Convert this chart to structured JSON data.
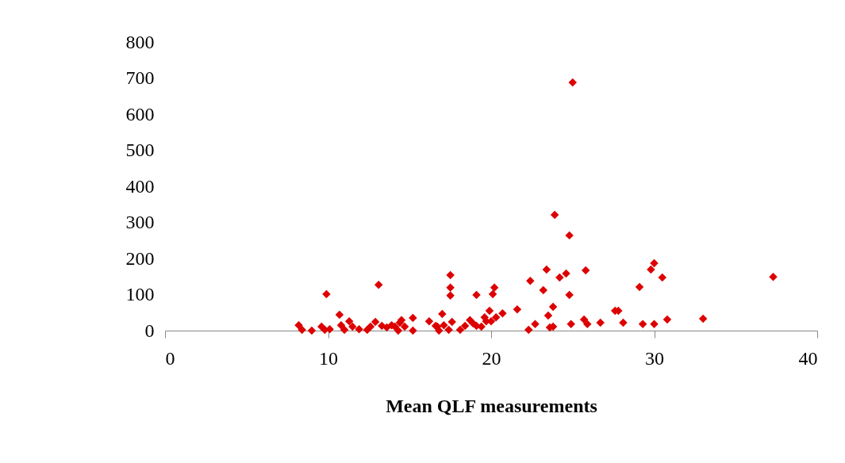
{
  "chart_data": {
    "type": "scatter",
    "xlabel": "Mean QLF measurements",
    "marker": "diamond",
    "grid": false,
    "legend": false,
    "xlim": [
      0,
      40
    ],
    "xticks": [
      0,
      10,
      20,
      30,
      40
    ],
    "ylim": [
      0,
      800
    ],
    "yticks": [
      0,
      100,
      200,
      300,
      400,
      500,
      600,
      700,
      800
    ],
    "series": [
      {
        "color": "#dd0000",
        "x": [
          8.2,
          8.4,
          9.0,
          9.6,
          9.9,
          9.8,
          10.1,
          10.7,
          10.8,
          11.0,
          11.3,
          11.5,
          11.9,
          12.4,
          12.6,
          12.9,
          13.1,
          13.3,
          13.6,
          13.9,
          14.1,
          14.3,
          14.4,
          14.5,
          14.7,
          15.2,
          15.2,
          16.2,
          16.6,
          16.7,
          16.8,
          17.0,
          17.1,
          17.4,
          17.5,
          17.5,
          17.5,
          17.6,
          18.1,
          18.4,
          18.7,
          18.9,
          19.1,
          19.1,
          19.4,
          19.6,
          19.9,
          20.1,
          20.2,
          20.3,
          20.7,
          19.7,
          20.0,
          21.6,
          22.3,
          22.7,
          22.4,
          23.4,
          23.2,
          23.9,
          23.5,
          23.8,
          23.6,
          23.8,
          24.2,
          24.6,
          24.8,
          24.8,
          24.9,
          25.0,
          25.8,
          25.7,
          25.9,
          26.7,
          27.6,
          27.8,
          28.1,
          29.1,
          29.3,
          29.8,
          30.0,
          30.0,
          30.5,
          30.8,
          33.0,
          37.3
        ],
        "values": [
          15,
          2,
          0,
          11,
          101,
          2,
          4,
          44,
          15,
          2,
          26,
          11,
          4,
          2,
          11,
          24,
          127,
          13,
          9,
          15,
          11,
          0,
          22,
          29,
          11,
          35,
          0,
          26,
          13,
          11,
          0,
          46,
          15,
          2,
          154,
          119,
          97,
          24,
          2,
          13,
          29,
          20,
          13,
          99,
          11,
          37,
          55,
          101,
          119,
          37,
          48,
          26,
          26,
          59,
          2,
          18,
          138,
          169,
          112,
          321,
          42,
          66,
          9,
          11,
          147,
          158,
          264,
          99,
          18,
          688,
          167,
          31,
          18,
          22,
          55,
          55,
          22,
          121,
          18,
          169,
          187,
          18,
          147,
          31,
          33,
          149
        ]
      }
    ]
  }
}
